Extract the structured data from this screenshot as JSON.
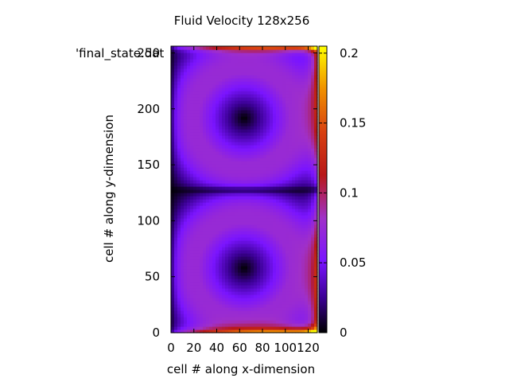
{
  "chart_data": {
    "type": "heatmap",
    "title": "Fluid Velocity 128x256",
    "xlabel": "cell # along x-dimension",
    "ylabel": "cell # along y-dimension",
    "legend_entry": "'final_state.dat",
    "legend_position": "top-left",
    "grid": false,
    "xlim": [
      0,
      128
    ],
    "ylim": [
      0,
      256
    ],
    "x_ticks": [
      0,
      20,
      40,
      60,
      80,
      100,
      120
    ],
    "y_ticks": [
      0,
      50,
      100,
      150,
      200,
      250
    ],
    "colorbar": {
      "range": [
        0,
        0.205
      ],
      "ticks": [
        0,
        0.05,
        0.1,
        0.15,
        0.2
      ],
      "palette": [
        "#000000",
        "#3a0092",
        "#7a14ff",
        "#a030c8",
        "#c02a2a",
        "#e06010",
        "#f8c000",
        "#ffff00"
      ]
    },
    "description_values": {
      "vortex_centers": [
        {
          "x": 64,
          "y": 58
        },
        {
          "x": 64,
          "y": 192
        }
      ],
      "max_velocity_regions": [
        "top lid (y≈254)",
        "right wall",
        "bottom (y≈2)"
      ]
    }
  }
}
